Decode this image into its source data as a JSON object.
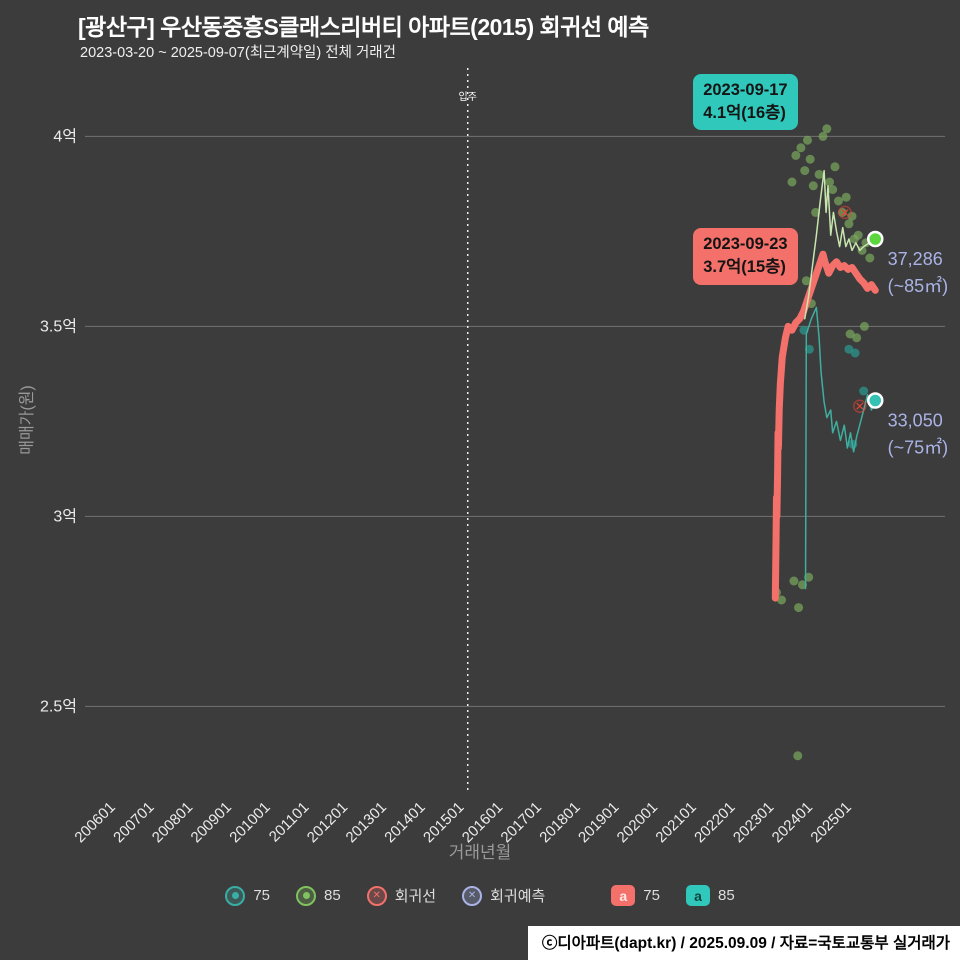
{
  "header": {
    "title": "[광산구] 우산동중흥S클래스리버티 아파트(2015) 회귀선 예측",
    "subtitle": "2023-03-20 ~ 2025-09-07(최근계약일) 전체 거래건"
  },
  "footer": {
    "credit": "ⓒ디아파트(dapt.kr) / 2025.09.09 / 자료=국토교통부 실거래가"
  },
  "chart_data": {
    "type": "scatter",
    "title": "[광산구] 우산동중흥S클래스리버티 아파트(2015) 회귀선 예측",
    "xlabel": "거래년월",
    "ylabel": "매매가(원)",
    "grid": true,
    "legend_position": "bottom",
    "xlim": [
      2005.2,
      2027.4
    ],
    "ylim": [
      2.28,
      4.18
    ],
    "x_ticks": [
      "200601",
      "200701",
      "200801",
      "200901",
      "201001",
      "201101",
      "201201",
      "201301",
      "201401",
      "201501",
      "201601",
      "201701",
      "201801",
      "201901",
      "202001",
      "202101",
      "202201",
      "202301",
      "202401",
      "202501"
    ],
    "y_ticks": [
      {
        "label": "4억",
        "value": 4.0
      },
      {
        "label": "3.5억",
        "value": 3.5
      },
      {
        "label": "3억",
        "value": 3.0
      },
      {
        "label": "2.5억",
        "value": 2.5
      }
    ],
    "move_in": {
      "x": 2015.08,
      "label": "입주"
    },
    "series": [
      {
        "id": "scatter-85",
        "name": "85",
        "type": "scatter",
        "color": "#7aa85d",
        "opacity": 0.7,
        "points": [
          [
            2023.05,
            2.8
          ],
          [
            2023.18,
            2.78
          ],
          [
            2023.5,
            2.83
          ],
          [
            2023.62,
            2.76
          ],
          [
            2023.72,
            2.82
          ],
          [
            2023.88,
            2.84
          ],
          [
            2023.6,
            2.37
          ],
          [
            2023.45,
            3.88
          ],
          [
            2023.55,
            3.95
          ],
          [
            2023.68,
            3.97
          ],
          [
            2023.78,
            3.91
          ],
          [
            2023.85,
            3.99
          ],
          [
            2023.92,
            3.94
          ],
          [
            2024.0,
            3.87
          ],
          [
            2024.06,
            3.8
          ],
          [
            2024.15,
            3.9
          ],
          [
            2024.25,
            4.0
          ],
          [
            2024.35,
            4.02
          ],
          [
            2024.42,
            3.88
          ],
          [
            2024.5,
            3.86
          ],
          [
            2024.56,
            3.92
          ],
          [
            2024.65,
            3.83
          ],
          [
            2024.75,
            3.8
          ],
          [
            2024.85,
            3.84
          ],
          [
            2024.92,
            3.77
          ],
          [
            2025.0,
            3.79
          ],
          [
            2025.06,
            3.73
          ],
          [
            2025.16,
            3.74
          ],
          [
            2025.26,
            3.7
          ],
          [
            2025.36,
            3.72
          ],
          [
            2025.46,
            3.68
          ],
          [
            2023.82,
            3.62
          ],
          [
            2023.95,
            3.56
          ],
          [
            2024.95,
            3.48
          ],
          [
            2025.12,
            3.47
          ],
          [
            2025.32,
            3.5
          ]
        ]
      },
      {
        "id": "scatter-75",
        "name": "75",
        "type": "scatter",
        "color": "#2c8f86",
        "opacity": 0.8,
        "points": [
          [
            2023.76,
            3.49
          ],
          [
            2023.9,
            3.44
          ],
          [
            2024.92,
            3.44
          ],
          [
            2025.08,
            3.43
          ],
          [
            2025.02,
            3.19
          ],
          [
            2025.3,
            3.33
          ]
        ]
      },
      {
        "id": "regression-line",
        "name": "회귀선",
        "type": "line",
        "color": "#f4716b",
        "width": 7,
        "points": [
          [
            2023.02,
            2.785
          ],
          [
            2023.04,
            2.95
          ],
          [
            2023.05,
            3.05
          ],
          [
            2023.06,
            3.0
          ],
          [
            2023.08,
            3.12
          ],
          [
            2023.09,
            3.22
          ],
          [
            2023.1,
            3.18
          ],
          [
            2023.12,
            3.28
          ],
          [
            2023.15,
            3.35
          ],
          [
            2023.2,
            3.42
          ],
          [
            2023.28,
            3.47
          ],
          [
            2023.35,
            3.5
          ],
          [
            2023.45,
            3.49
          ],
          [
            2023.55,
            3.51
          ],
          [
            2023.65,
            3.52
          ],
          [
            2023.75,
            3.54
          ],
          [
            2023.85,
            3.57
          ],
          [
            2023.95,
            3.6
          ],
          [
            2024.05,
            3.63
          ],
          [
            2024.15,
            3.66
          ],
          [
            2024.25,
            3.69
          ],
          [
            2024.3,
            3.67
          ],
          [
            2024.4,
            3.64
          ],
          [
            2024.5,
            3.66
          ],
          [
            2024.6,
            3.67
          ],
          [
            2024.7,
            3.655
          ],
          [
            2024.8,
            3.66
          ],
          [
            2024.9,
            3.65
          ],
          [
            2025.0,
            3.655
          ],
          [
            2025.1,
            3.64
          ],
          [
            2025.2,
            3.625
          ],
          [
            2025.3,
            3.615
          ],
          [
            2025.4,
            3.6
          ],
          [
            2025.5,
            3.61
          ],
          [
            2025.6,
            3.595
          ]
        ]
      },
      {
        "id": "forecast-75",
        "name": "회귀예측 75",
        "type": "line",
        "color": "#3fae9f",
        "width": 1.5,
        "end_marker": true,
        "end_marker_color": "#35c2b5",
        "points": [
          [
            2023.8,
            2.81
          ],
          [
            2023.82,
            3.48
          ],
          [
            2023.95,
            3.52
          ],
          [
            2024.08,
            3.55
          ],
          [
            2024.15,
            3.47
          ],
          [
            2024.2,
            3.38
          ],
          [
            2024.28,
            3.3
          ],
          [
            2024.35,
            3.26
          ],
          [
            2024.45,
            3.28
          ],
          [
            2024.5,
            3.22
          ],
          [
            2024.6,
            3.25
          ],
          [
            2024.7,
            3.2
          ],
          [
            2024.8,
            3.24
          ],
          [
            2024.88,
            3.18
          ],
          [
            2024.96,
            3.22
          ],
          [
            2025.04,
            3.17
          ],
          [
            2025.12,
            3.21
          ],
          [
            2025.25,
            3.26
          ],
          [
            2025.4,
            3.32
          ],
          [
            2025.5,
            3.28
          ],
          [
            2025.6,
            3.305
          ]
        ]
      },
      {
        "id": "forecast-85",
        "name": "회귀예측 85",
        "type": "line",
        "color": "#c7e6ae",
        "width": 1.5,
        "end_marker": true,
        "end_marker_color": "#5bd63d",
        "points": [
          [
            2023.78,
            3.52
          ],
          [
            2023.88,
            3.58
          ],
          [
            2023.98,
            3.66
          ],
          [
            2024.08,
            3.74
          ],
          [
            2024.18,
            3.83
          ],
          [
            2024.28,
            3.91
          ],
          [
            2024.33,
            3.8
          ],
          [
            2024.38,
            3.87
          ],
          [
            2024.45,
            3.74
          ],
          [
            2024.52,
            3.8
          ],
          [
            2024.6,
            3.75
          ],
          [
            2024.68,
            3.71
          ],
          [
            2024.76,
            3.76
          ],
          [
            2024.84,
            3.71
          ],
          [
            2024.92,
            3.73
          ],
          [
            2025.0,
            3.7
          ],
          [
            2025.1,
            3.72
          ],
          [
            2025.2,
            3.7
          ],
          [
            2025.3,
            3.71
          ],
          [
            2025.45,
            3.72
          ],
          [
            2025.6,
            3.73
          ]
        ]
      },
      {
        "id": "regression-markers",
        "name": "회귀선 마커",
        "type": "xmark",
        "color": "#e64433",
        "points": [
          [
            2024.82,
            3.8
          ],
          [
            2025.2,
            3.29
          ]
        ]
      }
    ],
    "end_labels": [
      {
        "value": "37,286",
        "area": "(~85㎡)",
        "x": 2025.92,
        "y": 3.73
      },
      {
        "value": "33,050",
        "area": "(~75㎡)",
        "x": 2025.92,
        "y": 3.305
      }
    ],
    "annotations": [
      {
        "date": "2023-09-17",
        "text": "4.1억(16층)",
        "color": "#2fc8bb",
        "x": 2020.9,
        "y": 4.165
      },
      {
        "date": "2023-09-23",
        "text": "3.7억(15층)",
        "color": "#f4716b",
        "x": 2020.9,
        "y": 3.758
      }
    ],
    "legend": [
      {
        "id": "series-75",
        "label": "75",
        "swatch": "circle",
        "color": "#3aaea6"
      },
      {
        "id": "series-85",
        "label": "85",
        "swatch": "circle",
        "color": "#7fc25f"
      },
      {
        "id": "regression",
        "label": "회귀선",
        "swatch": "circle-x",
        "color": "#f4716b"
      },
      {
        "id": "forecast",
        "label": "회귀예측",
        "swatch": "circle-x",
        "color": "#a9b3e6"
      },
      {
        "id": "unit-75-badge",
        "label": "75",
        "swatch": "square",
        "color": "#f4716b",
        "letter": "a",
        "letter_color": "#ffe9e7",
        "gap_before": true
      },
      {
        "id": "unit-85-badge",
        "label": "85",
        "swatch": "square",
        "color": "#2fc8bb",
        "letter": "a",
        "letter_color": "#0d4540"
      }
    ]
  }
}
